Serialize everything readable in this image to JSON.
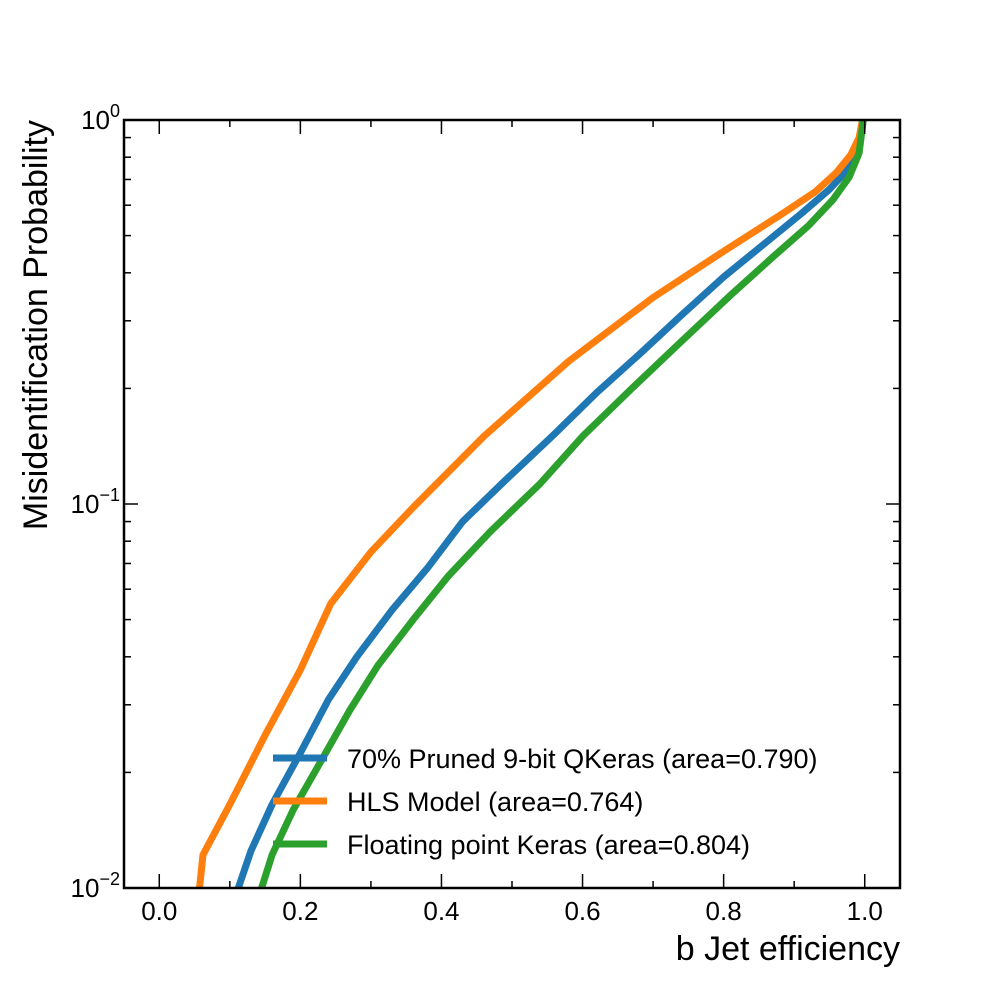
{
  "chart_data": {
    "type": "line",
    "xlabel": "b Jet efficiency",
    "ylabel": "Misidentification Probability",
    "xlim": [
      -0.05,
      1.05
    ],
    "ylim": [
      0.01,
      1
    ],
    "yscale": "log",
    "x_ticks": [
      "0.0",
      "0.2",
      "0.4",
      "0.6",
      "0.8",
      "1.0"
    ],
    "y_ticks": [
      {
        "base": "10",
        "exp": "0"
      },
      {
        "base": "10",
        "exp": "−1"
      },
      {
        "base": "10",
        "exp": "−2"
      }
    ],
    "grid": false,
    "legend_position": "lower-right",
    "series": [
      {
        "name": "70% Pruned 9-bit QKeras (area=0.790)",
        "color": "#1f77b4",
        "points": [
          [
            0.112,
            0.01
          ],
          [
            0.13,
            0.0125
          ],
          [
            0.16,
            0.0165
          ],
          [
            0.2,
            0.0225
          ],
          [
            0.24,
            0.031
          ],
          [
            0.28,
            0.04
          ],
          [
            0.33,
            0.053
          ],
          [
            0.38,
            0.068
          ],
          [
            0.43,
            0.09
          ],
          [
            0.49,
            0.115
          ],
          [
            0.56,
            0.152
          ],
          [
            0.62,
            0.195
          ],
          [
            0.68,
            0.245
          ],
          [
            0.74,
            0.31
          ],
          [
            0.8,
            0.39
          ],
          [
            0.86,
            0.48
          ],
          [
            0.91,
            0.57
          ],
          [
            0.95,
            0.66
          ],
          [
            0.975,
            0.74
          ],
          [
            0.99,
            0.85
          ],
          [
            0.997,
            1.0
          ]
        ]
      },
      {
        "name": "HLS Model (area=0.764)",
        "color": "#ff7f0e",
        "points": [
          [
            0.057,
            0.01
          ],
          [
            0.062,
            0.0122
          ],
          [
            0.1,
            0.0165
          ],
          [
            0.15,
            0.025
          ],
          [
            0.2,
            0.037
          ],
          [
            0.243,
            0.055
          ],
          [
            0.3,
            0.075
          ],
          [
            0.36,
            0.098
          ],
          [
            0.46,
            0.15
          ],
          [
            0.58,
            0.235
          ],
          [
            0.7,
            0.345
          ],
          [
            0.8,
            0.455
          ],
          [
            0.88,
            0.565
          ],
          [
            0.93,
            0.65
          ],
          [
            0.96,
            0.73
          ],
          [
            0.98,
            0.81
          ],
          [
            0.992,
            0.9
          ],
          [
            0.997,
            1.0
          ]
        ]
      },
      {
        "name": "Floating point Keras (area=0.804)",
        "color": "#2ca02c",
        "points": [
          [
            0.145,
            0.01
          ],
          [
            0.16,
            0.0122
          ],
          [
            0.19,
            0.016
          ],
          [
            0.23,
            0.0215
          ],
          [
            0.27,
            0.029
          ],
          [
            0.31,
            0.038
          ],
          [
            0.36,
            0.05
          ],
          [
            0.41,
            0.065
          ],
          [
            0.47,
            0.085
          ],
          [
            0.54,
            0.113
          ],
          [
            0.6,
            0.15
          ],
          [
            0.67,
            0.2
          ],
          [
            0.74,
            0.265
          ],
          [
            0.81,
            0.35
          ],
          [
            0.87,
            0.44
          ],
          [
            0.92,
            0.53
          ],
          [
            0.955,
            0.62
          ],
          [
            0.978,
            0.71
          ],
          [
            0.992,
            0.82
          ],
          [
            0.998,
            1.0
          ]
        ]
      }
    ]
  }
}
